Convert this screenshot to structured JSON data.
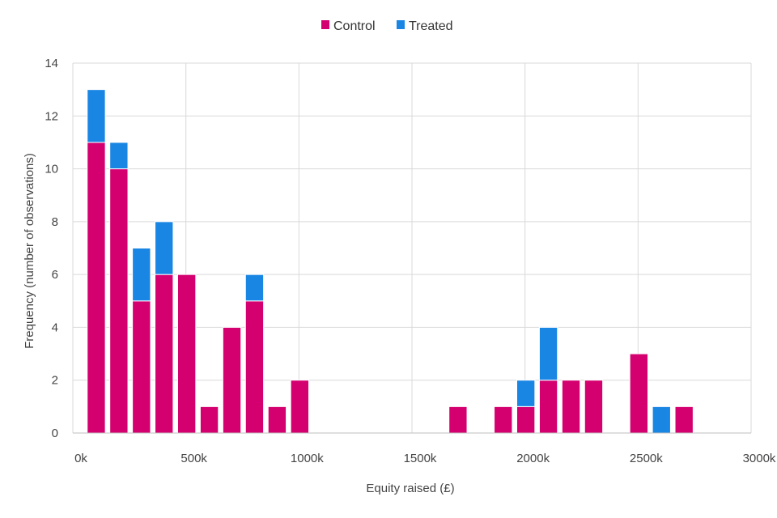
{
  "chart_data": {
    "type": "bar",
    "stacked": true,
    "xlabel": "Equity raised (£)",
    "ylabel": "Frequency (number of observations)",
    "xlim": [
      0,
      3000
    ],
    "ylim": [
      0,
      14
    ],
    "x_ticks": [
      0,
      500,
      1000,
      1500,
      2000,
      2500,
      3000
    ],
    "x_tick_labels": [
      "0k",
      "500k",
      "1000k",
      "1500k",
      "2000k",
      "2500k",
      "3000k"
    ],
    "y_ticks": [
      0,
      2,
      4,
      6,
      8,
      10,
      12,
      14
    ],
    "y_tick_labels": [
      "0",
      "2",
      "4",
      "6",
      "8",
      "10",
      "12",
      "14"
    ],
    "grid": true,
    "legend_position": "top-center",
    "x": [
      100,
      200,
      300,
      400,
      500,
      600,
      700,
      800,
      900,
      1000,
      1700,
      1900,
      2000,
      2100,
      2200,
      2300,
      2500,
      2600,
      2700
    ],
    "series": [
      {
        "name": "Control",
        "color": "#d4006f",
        "values": [
          11,
          10,
          5,
          6,
          6,
          1,
          4,
          5,
          1,
          2,
          1,
          1,
          1,
          2,
          2,
          2,
          3,
          0,
          1
        ]
      },
      {
        "name": "Treated",
        "color": "#1a86e4",
        "values": [
          2,
          1,
          2,
          2,
          0,
          0,
          0,
          1,
          0,
          0,
          0,
          0,
          1,
          2,
          0,
          0,
          0,
          1,
          0
        ]
      }
    ]
  }
}
